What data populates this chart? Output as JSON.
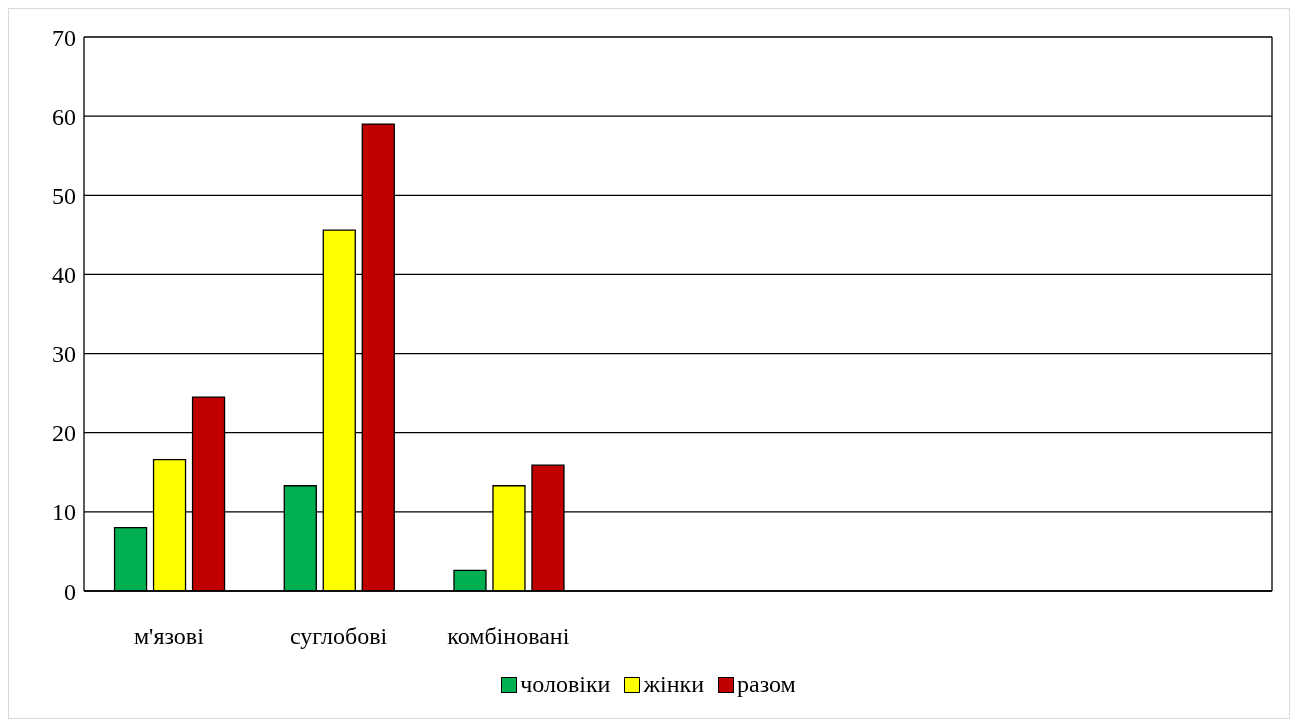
{
  "chart_data": {
    "type": "bar",
    "categories": [
      "м'язові",
      "суглобові",
      "комбіновані",
      null,
      null,
      null,
      null
    ],
    "series": [
      {
        "name": "чоловіки",
        "color": "#00b050",
        "values": [
          8,
          13.3,
          2.6,
          null,
          null,
          null,
          null
        ]
      },
      {
        "name": "жінки",
        "color": "#ffff00",
        "values": [
          16.6,
          45.6,
          13.3,
          null,
          null,
          null,
          null
        ]
      },
      {
        "name": "разом",
        "color": "#c00000",
        "values": [
          24.5,
          59,
          15.9,
          null,
          null,
          null,
          null
        ]
      }
    ],
    "ylim": [
      0,
      70
    ],
    "yticks": [
      0,
      10,
      20,
      30,
      40,
      50,
      60,
      70
    ],
    "grid": "y",
    "legend": "bottom"
  }
}
